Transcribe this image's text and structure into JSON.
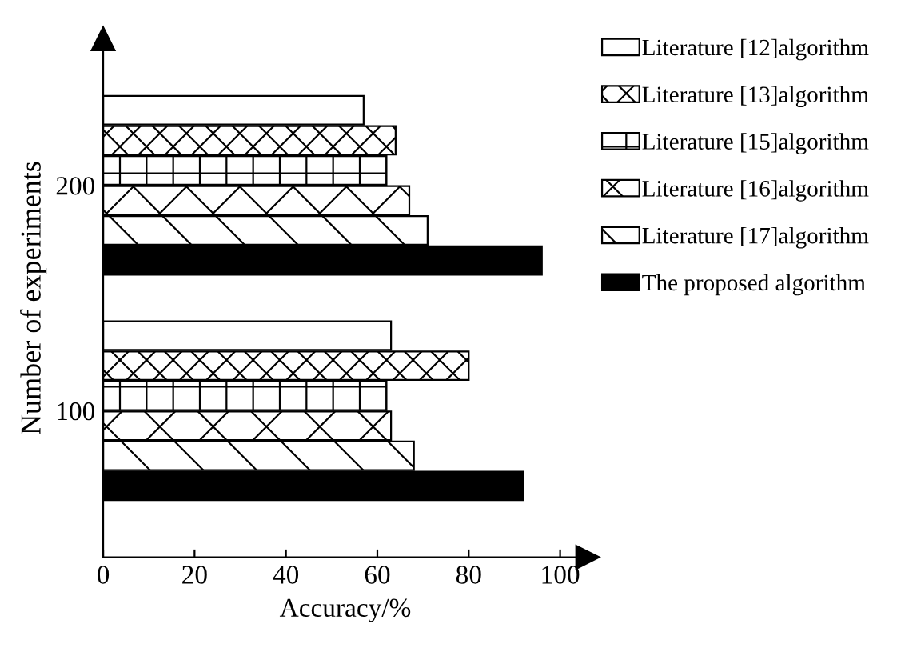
{
  "chart_data": {
    "type": "bar",
    "orientation": "horizontal",
    "xlabel": "Accuracy/%",
    "ylabel": "Number of experiments",
    "categories": [
      "200",
      "100"
    ],
    "series": [
      {
        "name": "Literature [12]algorithm",
        "color": "#ffffff",
        "values": [
          57,
          63
        ]
      },
      {
        "name": "Literature [13]algorithm",
        "color": "#000000",
        "values": [
          64,
          80
        ]
      },
      {
        "name": "Literature [15]algorithm",
        "color": "#000000",
        "values": [
          62,
          62
        ]
      },
      {
        "name": "Literature [16]algorithm",
        "color": "#000000",
        "values": [
          67,
          63
        ]
      },
      {
        "name": "Literature [17]algorithm",
        "color": "#000000",
        "values": [
          71,
          68
        ]
      },
      {
        "name": "The proposed algorithm",
        "color": "#000000",
        "values": [
          96,
          92
        ]
      }
    ],
    "xlim": [
      0,
      106
    ],
    "xticks": [
      0,
      20,
      40,
      60,
      80,
      100
    ],
    "grid": false,
    "legend": "right"
  }
}
